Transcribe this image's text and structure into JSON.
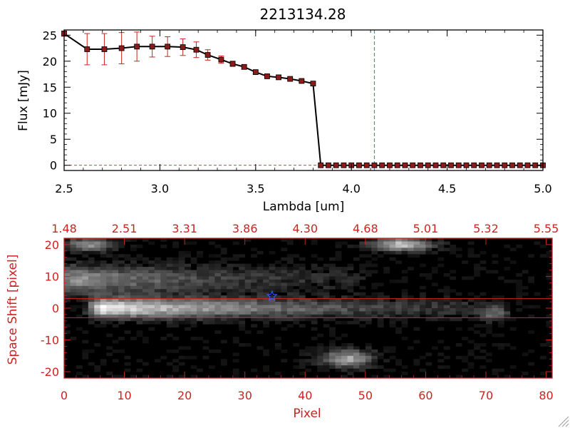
{
  "title": "2213134.28",
  "colors": {
    "axis": "#000000",
    "line": "#000000",
    "marker": "#8b1a1a",
    "errorbar": "#cc2222",
    "vline": "#3399cc",
    "red_axis": "#cc2222",
    "star": "#3366ff",
    "background": "#ffffff"
  },
  "chart_data": [
    {
      "type": "line",
      "title": "2213134.28",
      "xlabel": "Lambda [um]",
      "ylabel": "Flux [mJy]",
      "xlim": [
        2.5,
        5.0
      ],
      "ylim": [
        -1,
        26
      ],
      "xticks": [
        "2.5",
        "3.0",
        "3.5",
        "4.0",
        "4.5",
        "5.0"
      ],
      "xtick_values": [
        2.5,
        3.0,
        3.5,
        4.0,
        4.5,
        5.0
      ],
      "yticks": [
        "0",
        "5",
        "10",
        "15",
        "20",
        "25"
      ],
      "ytick_values": [
        0,
        5,
        10,
        15,
        20,
        25
      ],
      "grid": false,
      "reference_line_x": 4.12,
      "series": [
        {
          "x": [
            2.5,
            2.62,
            2.71,
            2.8,
            2.88,
            2.96,
            3.04,
            3.12,
            3.19,
            3.25,
            3.32,
            3.38,
            3.44,
            3.5,
            3.56,
            3.62,
            3.68,
            3.74,
            3.8,
            3.84,
            3.88,
            3.92,
            3.96,
            4.0,
            4.04,
            4.08,
            4.12,
            4.16,
            4.2,
            4.24,
            4.28,
            4.32,
            4.36,
            4.4,
            4.44,
            4.48,
            4.52,
            4.56,
            4.6,
            4.64,
            4.68,
            4.72,
            4.76,
            4.8,
            4.84,
            4.88,
            4.92,
            4.96,
            5.0
          ],
          "y": [
            25.3,
            22.3,
            22.3,
            22.5,
            22.8,
            22.8,
            22.8,
            22.7,
            22.2,
            21.2,
            20.3,
            19.5,
            18.9,
            17.9,
            17.1,
            16.9,
            16.6,
            16.2,
            15.7,
            0,
            0,
            0,
            0,
            0,
            0,
            0,
            0,
            0,
            0,
            0,
            0,
            0,
            0,
            0,
            0,
            0,
            0,
            0,
            0,
            0,
            0,
            0,
            0,
            0,
            0,
            0,
            0,
            0,
            0
          ],
          "yerr": [
            0.5,
            3.0,
            3.0,
            3.0,
            2.8,
            2.0,
            1.9,
            1.6,
            1.5,
            1.0,
            0.7,
            0.5,
            0.4,
            0.3,
            0.3,
            0.3,
            0.3,
            0.3,
            0.4,
            0,
            0,
            0,
            0,
            0,
            0,
            0,
            0,
            0,
            0,
            0,
            0,
            0,
            0,
            0,
            0,
            0,
            0,
            0,
            0,
            0,
            0,
            0,
            0,
            0,
            0,
            0,
            0,
            0,
            0
          ]
        }
      ]
    },
    {
      "type": "heatmap",
      "xlabel": "Pixel",
      "ylabel": "Space Shift [pixel]",
      "xlim": [
        0,
        81
      ],
      "ylim": [
        -22,
        22
      ],
      "xticks": [
        "0",
        "10",
        "20",
        "30",
        "40",
        "50",
        "60",
        "70",
        "80"
      ],
      "xtick_values": [
        0,
        10,
        20,
        30,
        40,
        50,
        60,
        70,
        80
      ],
      "yticks": [
        "-20",
        "-10",
        "0",
        "10",
        "20"
      ],
      "ytick_values": [
        -20,
        -10,
        0,
        10,
        20
      ],
      "top_ticks": [
        "1.48",
        "2.51",
        "3.31",
        "3.86",
        "4.30",
        "4.68",
        "5.01",
        "5.32",
        "5.55"
      ],
      "extraction_window": [
        -3,
        3
      ],
      "source_marker": {
        "x": 34.5,
        "y": 3.8
      },
      "grid": false,
      "features": [
        {
          "kind": "streak",
          "x0": 5,
          "x1": 74,
          "y": 0,
          "peak": 1.0,
          "width": 2.2,
          "decay": 35
        },
        {
          "kind": "streak",
          "x0": 0,
          "x1": 50,
          "y": 9,
          "peak": 0.6,
          "width": 3.0,
          "decay": 30
        },
        {
          "kind": "blob",
          "x": 56,
          "y": 20,
          "peak": 0.75,
          "sx": 3.5,
          "sy": 1.5
        },
        {
          "kind": "blob",
          "x": 47,
          "y": -16,
          "peak": 0.65,
          "sx": 3.0,
          "sy": 2.0
        },
        {
          "kind": "blob",
          "x": 4,
          "y": 20,
          "peak": 0.55,
          "sx": 3.0,
          "sy": 1.5
        },
        {
          "kind": "blob",
          "x": 71,
          "y": -2,
          "peak": 0.35,
          "sx": 1.5,
          "sy": 1.5
        }
      ]
    }
  ]
}
